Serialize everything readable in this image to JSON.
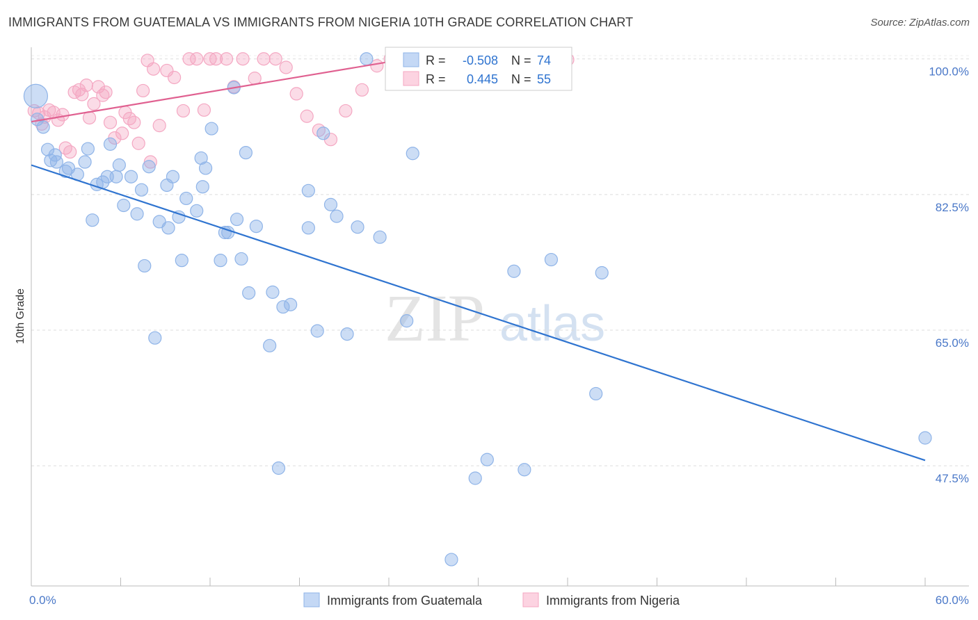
{
  "chart_data": {
    "type": "scatter",
    "title": "IMMIGRANTS FROM GUATEMALA VS IMMIGRANTS FROM NIGERIA 10TH GRADE CORRELATION CHART",
    "source": "Source: ZipAtlas.com",
    "ylabel": "10th Grade",
    "xlim": [
      0,
      60
    ],
    "ylim": [
      32,
      101.5
    ],
    "x_tick_labels": [
      "0.0%",
      "60.0%"
    ],
    "y_ticks": [
      {
        "value": 100,
        "label": "100.0%"
      },
      {
        "value": 82.5,
        "label": "82.5%"
      },
      {
        "value": 65,
        "label": "65.0%"
      },
      {
        "value": 47.5,
        "label": "47.5%"
      }
    ],
    "grid": true,
    "legend_position": "top-center",
    "watermark": {
      "part1": "ZIP",
      "part2": "atlas"
    },
    "series": [
      {
        "name": "Immigrants from Guatemala",
        "color": "#8fb4e8",
        "line_color": "#2f74d0",
        "r_label": "R =",
        "r_value": "-0.508",
        "n_label": "N =",
        "n_value": "74",
        "trend": {
          "x": [
            0,
            60
          ],
          "y": [
            86.3,
            48.2
          ]
        },
        "points": [
          [
            0.3,
            95.2
          ],
          [
            0.4,
            92.2
          ],
          [
            0.8,
            91.2
          ],
          [
            1.1,
            88.3
          ],
          [
            1.3,
            86.9
          ],
          [
            1.7,
            86.7
          ],
          [
            1.6,
            87.6
          ],
          [
            2.3,
            85.5
          ],
          [
            2.5,
            85.9
          ],
          [
            3.1,
            85.1
          ],
          [
            3.6,
            86.7
          ],
          [
            3.8,
            88.4
          ],
          [
            4.1,
            79.2
          ],
          [
            4.4,
            83.8
          ],
          [
            4.8,
            84.1
          ],
          [
            5.1,
            84.8
          ],
          [
            5.3,
            89.0
          ],
          [
            5.7,
            84.8
          ],
          [
            5.9,
            86.3
          ],
          [
            6.2,
            81.1
          ],
          [
            6.7,
            84.8
          ],
          [
            7.1,
            80.0
          ],
          [
            7.4,
            83.1
          ],
          [
            7.6,
            73.3
          ],
          [
            7.9,
            86.1
          ],
          [
            8.3,
            64.0
          ],
          [
            8.6,
            79.0
          ],
          [
            9.1,
            83.7
          ],
          [
            9.2,
            78.2
          ],
          [
            9.5,
            84.8
          ],
          [
            9.9,
            79.6
          ],
          [
            10.1,
            74.0
          ],
          [
            10.4,
            82.0
          ],
          [
            11.1,
            80.4
          ],
          [
            11.4,
            87.2
          ],
          [
            11.5,
            83.5
          ],
          [
            11.7,
            85.9
          ],
          [
            12.1,
            91.0
          ],
          [
            12.7,
            74.0
          ],
          [
            13.0,
            77.6
          ],
          [
            13.2,
            77.6
          ],
          [
            13.6,
            96.3
          ],
          [
            13.8,
            79.3
          ],
          [
            14.1,
            74.2
          ],
          [
            14.4,
            87.9
          ],
          [
            14.6,
            69.8
          ],
          [
            15.1,
            78.4
          ],
          [
            16.0,
            63.0
          ],
          [
            16.2,
            69.9
          ],
          [
            16.6,
            47.2
          ],
          [
            16.9,
            68.0
          ],
          [
            17.4,
            68.3
          ],
          [
            18.6,
            78.2
          ],
          [
            18.6,
            83.0
          ],
          [
            19.2,
            64.9
          ],
          [
            19.6,
            90.4
          ],
          [
            20.1,
            81.2
          ],
          [
            20.5,
            79.7
          ],
          [
            21.2,
            64.5
          ],
          [
            21.9,
            78.3
          ],
          [
            22.5,
            100.0
          ],
          [
            23.4,
            77.0
          ],
          [
            25.2,
            66.2
          ],
          [
            25.6,
            87.8
          ],
          [
            28.2,
            35.4
          ],
          [
            29.8,
            45.9
          ],
          [
            30.6,
            48.3
          ],
          [
            32.4,
            72.6
          ],
          [
            33.1,
            47.0
          ],
          [
            34.9,
            74.1
          ],
          [
            35.1,
            97.8
          ],
          [
            37.9,
            56.8
          ],
          [
            38.3,
            72.4
          ],
          [
            60.0,
            51.1
          ]
        ]
      },
      {
        "name": "Immigrants from Nigeria",
        "color": "#f4a7c2",
        "line_color": "#e06090",
        "r_label": "R =",
        "r_value": "0.445",
        "n_label": "N =",
        "n_value": "55",
        "trend": {
          "x": [
            0,
            25.2
          ],
          "y": [
            91.9,
            100.0
          ]
        },
        "points": [
          [
            0.2,
            93.3
          ],
          [
            0.5,
            93.0
          ],
          [
            0.7,
            91.6
          ],
          [
            0.9,
            92.5
          ],
          [
            1.2,
            93.4
          ],
          [
            1.5,
            93.1
          ],
          [
            1.8,
            92.1
          ],
          [
            2.1,
            92.8
          ],
          [
            2.3,
            88.5
          ],
          [
            2.6,
            88.0
          ],
          [
            2.9,
            95.7
          ],
          [
            3.2,
            96.0
          ],
          [
            3.4,
            95.4
          ],
          [
            3.7,
            96.6
          ],
          [
            3.9,
            92.4
          ],
          [
            4.2,
            94.2
          ],
          [
            4.5,
            96.4
          ],
          [
            4.8,
            95.3
          ],
          [
            5.0,
            95.7
          ],
          [
            5.3,
            91.8
          ],
          [
            5.6,
            89.8
          ],
          [
            6.1,
            90.4
          ],
          [
            6.6,
            92.3
          ],
          [
            6.9,
            91.8
          ],
          [
            7.2,
            89.1
          ],
          [
            7.5,
            95.9
          ],
          [
            7.8,
            99.8
          ],
          [
            8.2,
            98.7
          ],
          [
            8.6,
            91.4
          ],
          [
            9.1,
            98.5
          ],
          [
            9.6,
            97.6
          ],
          [
            10.2,
            93.3
          ],
          [
            10.6,
            100.0
          ],
          [
            11.1,
            100.0
          ],
          [
            11.6,
            93.4
          ],
          [
            12.0,
            100.0
          ],
          [
            12.4,
            100.0
          ],
          [
            13.1,
            100.0
          ],
          [
            13.6,
            96.4
          ],
          [
            14.2,
            100.0
          ],
          [
            15.0,
            97.5
          ],
          [
            15.6,
            100.0
          ],
          [
            16.4,
            100.0
          ],
          [
            17.1,
            98.9
          ],
          [
            17.8,
            95.5
          ],
          [
            18.5,
            92.6
          ],
          [
            19.3,
            90.8
          ],
          [
            20.1,
            89.6
          ],
          [
            21.1,
            93.3
          ],
          [
            22.2,
            96.0
          ],
          [
            23.2,
            99.1
          ],
          [
            24.1,
            100.0
          ],
          [
            6.3,
            93.1
          ],
          [
            8.0,
            86.7
          ],
          [
            36.0,
            99.9
          ]
        ]
      }
    ]
  }
}
